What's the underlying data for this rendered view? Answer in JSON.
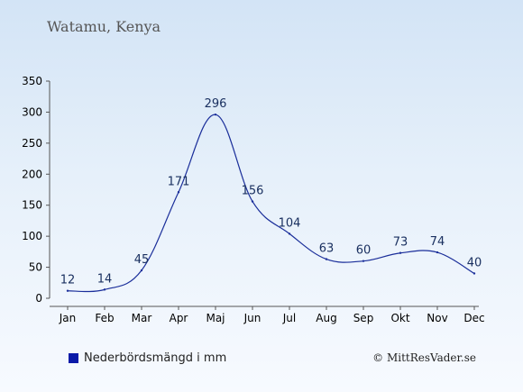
{
  "location": "Watamu, Kenya",
  "legend_label": "Nederbördsmängd i mm",
  "copyright": "© MittResVader.se",
  "colors": {
    "line": "#1a2e9a",
    "swatch": "#0a1aa8",
    "axis": "#555555"
  },
  "chart_data": {
    "type": "line",
    "categories": [
      "Jan",
      "Feb",
      "Mar",
      "Apr",
      "Maj",
      "Jun",
      "Jul",
      "Aug",
      "Sep",
      "Okt",
      "Nov",
      "Dec"
    ],
    "series": [
      {
        "values": [
          12,
          14,
          45,
          171,
          296,
          156,
          104,
          63,
          60,
          73,
          74,
          40
        ]
      }
    ],
    "yticks": [
      0,
      50,
      100,
      150,
      200,
      250,
      300,
      350
    ],
    "ylim": [
      0,
      350
    ],
    "grid": false,
    "legend_position": "bottom-left"
  }
}
